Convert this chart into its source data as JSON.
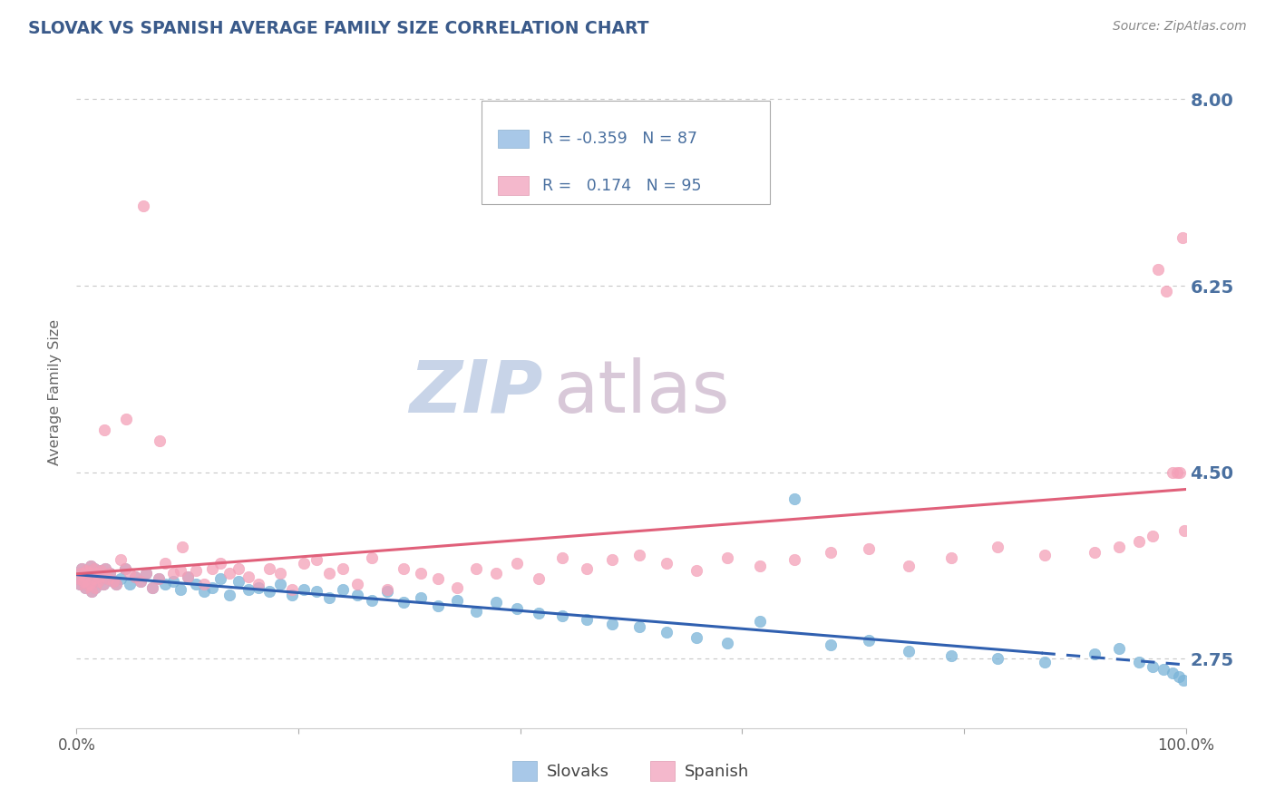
{
  "title": "SLOVAK VS SPANISH AVERAGE FAMILY SIZE CORRELATION CHART",
  "source_text": "Source: ZipAtlas.com",
  "ylabel": "Average Family Size",
  "x_tick_labels": [
    "0.0%",
    "100.0%"
  ],
  "y_tick_values": [
    2.75,
    4.5,
    6.25,
    8.0
  ],
  "y_tick_labels": [
    "2.75",
    "4.50",
    "6.25",
    "8.00"
  ],
  "xlim": [
    0.0,
    1.0
  ],
  "ylim": [
    2.1,
    8.4
  ],
  "slovak_color": "#7ab4d8",
  "spanish_color": "#f4a0b8",
  "trend_slovak_color": "#3060b0",
  "trend_spanish_color": "#e0607a",
  "watermark_zip_color": "#c8d4e8",
  "watermark_atlas_color": "#d8c8d8",
  "title_color": "#3a5a8a",
  "source_color": "#888888",
  "axis_label_color": "#666666",
  "tick_color": "#4a70a0",
  "grid_color": "#c8c8c8",
  "background_color": "#ffffff",
  "slovak_R": -0.359,
  "slovak_N": 87,
  "spanish_R": 0.174,
  "spanish_N": 95,
  "slovak_scatter_x": [
    0.002,
    0.003,
    0.004,
    0.005,
    0.006,
    0.007,
    0.008,
    0.009,
    0.01,
    0.011,
    0.012,
    0.013,
    0.014,
    0.015,
    0.016,
    0.017,
    0.018,
    0.019,
    0.02,
    0.022,
    0.024,
    0.026,
    0.028,
    0.03,
    0.033,
    0.036,
    0.04,
    0.044,
    0.048,
    0.053,
    0.058,
    0.063,
    0.068,
    0.074,
    0.08,
    0.087,
    0.094,
    0.1,
    0.108,
    0.115,
    0.122,
    0.13,
    0.138,
    0.146,
    0.155,
    0.164,
    0.174,
    0.184,
    0.194,
    0.205,
    0.216,
    0.228,
    0.24,
    0.253,
    0.266,
    0.28,
    0.295,
    0.31,
    0.326,
    0.343,
    0.36,
    0.378,
    0.397,
    0.417,
    0.438,
    0.46,
    0.483,
    0.507,
    0.532,
    0.559,
    0.587,
    0.616,
    0.647,
    0.68,
    0.714,
    0.75,
    0.789,
    0.83,
    0.873,
    0.918,
    0.94,
    0.958,
    0.97,
    0.98,
    0.988,
    0.994,
    0.998
  ],
  "slovak_scatter_y": [
    3.5,
    3.45,
    3.55,
    3.6,
    3.48,
    3.52,
    3.42,
    3.58,
    3.44,
    3.56,
    3.46,
    3.62,
    3.38,
    3.5,
    3.6,
    3.42,
    3.55,
    3.48,
    3.52,
    3.58,
    3.45,
    3.6,
    3.5,
    3.55,
    3.48,
    3.45,
    3.5,
    3.6,
    3.45,
    3.52,
    3.48,
    3.55,
    3.42,
    3.5,
    3.45,
    3.48,
    3.4,
    3.52,
    3.45,
    3.38,
    3.42,
    3.5,
    3.35,
    3.48,
    3.4,
    3.42,
    3.38,
    3.45,
    3.35,
    3.4,
    3.38,
    3.32,
    3.4,
    3.35,
    3.3,
    3.38,
    3.28,
    3.32,
    3.25,
    3.3,
    3.2,
    3.28,
    3.22,
    3.18,
    3.15,
    3.12,
    3.08,
    3.05,
    3.0,
    2.95,
    2.9,
    3.1,
    4.25,
    2.88,
    2.92,
    2.82,
    2.78,
    2.75,
    2.72,
    2.8,
    2.85,
    2.72,
    2.68,
    2.65,
    2.62,
    2.58,
    2.55
  ],
  "spanish_scatter_x": [
    0.002,
    0.003,
    0.004,
    0.005,
    0.006,
    0.007,
    0.008,
    0.009,
    0.01,
    0.011,
    0.012,
    0.013,
    0.014,
    0.015,
    0.016,
    0.017,
    0.018,
    0.019,
    0.02,
    0.022,
    0.024,
    0.026,
    0.028,
    0.03,
    0.033,
    0.036,
    0.04,
    0.044,
    0.048,
    0.053,
    0.058,
    0.063,
    0.068,
    0.074,
    0.08,
    0.087,
    0.094,
    0.1,
    0.108,
    0.115,
    0.122,
    0.13,
    0.138,
    0.146,
    0.155,
    0.164,
    0.174,
    0.184,
    0.194,
    0.205,
    0.216,
    0.228,
    0.24,
    0.253,
    0.266,
    0.28,
    0.295,
    0.31,
    0.326,
    0.343,
    0.36,
    0.378,
    0.397,
    0.417,
    0.438,
    0.46,
    0.483,
    0.507,
    0.532,
    0.559,
    0.587,
    0.616,
    0.647,
    0.68,
    0.714,
    0.75,
    0.789,
    0.83,
    0.873,
    0.918,
    0.94,
    0.958,
    0.97,
    0.975,
    0.982,
    0.988,
    0.992,
    0.995,
    0.997,
    0.999,
    0.06,
    0.075,
    0.095,
    0.025,
    0.045
  ],
  "spanish_scatter_y": [
    3.5,
    3.45,
    3.55,
    3.6,
    3.48,
    3.52,
    3.42,
    3.58,
    3.44,
    3.56,
    3.46,
    3.62,
    3.38,
    3.5,
    3.6,
    3.42,
    3.55,
    3.48,
    3.52,
    3.58,
    3.45,
    3.6,
    3.5,
    3.55,
    3.48,
    3.45,
    3.68,
    3.6,
    3.55,
    3.52,
    3.48,
    3.55,
    3.42,
    3.5,
    3.65,
    3.55,
    3.58,
    3.52,
    3.58,
    3.45,
    3.6,
    3.65,
    3.55,
    3.6,
    3.52,
    3.45,
    3.6,
    3.55,
    3.4,
    3.65,
    3.68,
    3.55,
    3.6,
    3.45,
    3.7,
    3.4,
    3.6,
    3.55,
    3.5,
    3.42,
    3.6,
    3.55,
    3.65,
    3.5,
    3.7,
    3.6,
    3.68,
    3.72,
    3.65,
    3.58,
    3.7,
    3.62,
    3.68,
    3.75,
    3.78,
    3.62,
    3.7,
    3.8,
    3.72,
    3.75,
    3.8,
    3.85,
    3.9,
    6.4,
    6.2,
    4.5,
    4.5,
    4.5,
    6.7,
    3.95,
    7.0,
    4.8,
    3.8,
    4.9,
    5.0
  ]
}
